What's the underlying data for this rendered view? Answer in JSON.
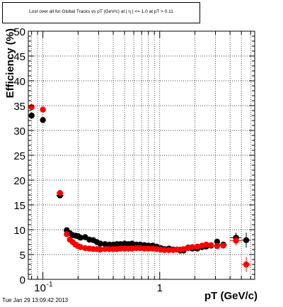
{
  "chart_data": {
    "type": "scatter",
    "title": "Lost over all for Global Tracks vs pT (GeV/c) at |  η  | <= 1.0 at pT > 0.11",
    "xlabel": "pT (GeV/c)",
    "ylabel": "Efficiency (%)",
    "xscale": "log",
    "xlim": [
      0.075,
      6.5
    ],
    "ylim": [
      0,
      50
    ],
    "grid": true,
    "y_ticks": [
      "0",
      "5",
      "10",
      "15",
      "20",
      "25",
      "30",
      "35",
      "40",
      "45",
      "50"
    ],
    "x_major_ticks": [
      {
        "x": 0.1,
        "label": "10",
        "exp": "-1"
      },
      {
        "x": 1,
        "label": "1",
        "exp": ""
      }
    ],
    "series": [
      {
        "color": "#000000",
        "x": [
          0.08,
          0.1,
          0.14,
          0.16,
          0.17,
          0.18,
          0.19,
          0.2,
          0.21,
          0.23,
          0.25,
          0.27,
          0.29,
          0.31,
          0.34,
          0.37,
          0.4,
          0.43,
          0.46,
          0.5,
          0.54,
          0.58,
          0.63,
          0.68,
          0.74,
          0.8,
          0.87,
          0.94,
          1.02,
          1.1,
          1.2,
          1.3,
          1.4,
          1.5,
          1.6,
          1.75,
          1.9,
          2.1,
          2.3,
          2.5,
          2.75,
          3.1,
          3.5,
          4.5,
          5.5
        ],
        "y": [
          33.0,
          32.1,
          16.9,
          9.9,
          9.3,
          8.9,
          8.8,
          8.7,
          8.4,
          8.5,
          8.0,
          7.9,
          7.5,
          7.2,
          7.1,
          7.0,
          7.0,
          7.1,
          7.1,
          7.2,
          7.1,
          7.2,
          7.0,
          7.0,
          6.9,
          6.8,
          6.8,
          6.6,
          6.3,
          6.1,
          6.2,
          6.0,
          6.0,
          5.8,
          5.8,
          6.4,
          6.2,
          6.2,
          6.5,
          6.6,
          6.8,
          7.6,
          7.0,
          8.4,
          7.9
        ],
        "x_err": [
          0.005,
          0.005,
          0.01,
          0.005,
          0.005,
          0.005,
          0.005,
          0.005,
          0.005,
          0.01,
          0.01,
          0.01,
          0.01,
          0.01,
          0.015,
          0.015,
          0.015,
          0.015,
          0.02,
          0.02,
          0.02,
          0.02,
          0.025,
          0.025,
          0.03,
          0.03,
          0.035,
          0.035,
          0.04,
          0.04,
          0.05,
          0.05,
          0.05,
          0.05,
          0.05,
          0.075,
          0.075,
          0.1,
          0.1,
          0.1,
          0.125,
          0.15,
          0.25,
          0.5,
          0.5
        ],
        "y_err": [
          0.2,
          0.2,
          0.2,
          0.2,
          0.2,
          0.2,
          0.2,
          0.2,
          0.2,
          0.2,
          0.2,
          0.2,
          0.2,
          0.2,
          0.2,
          0.2,
          0.2,
          0.2,
          0.2,
          0.2,
          0.2,
          0.2,
          0.2,
          0.2,
          0.2,
          0.2,
          0.2,
          0.2,
          0.2,
          0.2,
          0.2,
          0.2,
          0.3,
          0.3,
          0.3,
          0.3,
          0.3,
          0.3,
          0.4,
          0.4,
          0.4,
          0.5,
          0.6,
          1.0,
          1.5
        ]
      },
      {
        "color": "#ff0000",
        "x": [
          0.08,
          0.1,
          0.14,
          0.16,
          0.17,
          0.18,
          0.19,
          0.2,
          0.21,
          0.23,
          0.25,
          0.27,
          0.29,
          0.31,
          0.34,
          0.37,
          0.4,
          0.43,
          0.46,
          0.5,
          0.54,
          0.58,
          0.63,
          0.68,
          0.74,
          0.8,
          0.87,
          0.94,
          1.02,
          1.1,
          1.2,
          1.3,
          1.4,
          1.5,
          1.6,
          1.75,
          1.9,
          2.1,
          2.3,
          2.5,
          2.75,
          3.1,
          3.5,
          4.5,
          5.5
        ],
        "y": [
          34.7,
          34.2,
          17.4,
          9.1,
          8.0,
          7.5,
          7.0,
          6.7,
          6.5,
          6.3,
          6.2,
          6.1,
          6.1,
          6.0,
          6.1,
          6.1,
          6.1,
          6.1,
          6.2,
          6.2,
          6.2,
          6.2,
          6.3,
          6.3,
          6.2,
          6.2,
          6.2,
          6.1,
          6.0,
          5.9,
          5.9,
          5.9,
          6.0,
          6.0,
          6.1,
          6.3,
          6.5,
          6.6,
          6.8,
          7.0,
          6.9,
          6.7,
          6.8,
          7.8,
          3.0
        ],
        "x_err": [
          0.005,
          0.005,
          0.01,
          0.005,
          0.005,
          0.005,
          0.005,
          0.005,
          0.005,
          0.01,
          0.01,
          0.01,
          0.01,
          0.01,
          0.015,
          0.015,
          0.015,
          0.015,
          0.02,
          0.02,
          0.02,
          0.02,
          0.025,
          0.025,
          0.03,
          0.03,
          0.035,
          0.035,
          0.04,
          0.04,
          0.05,
          0.05,
          0.05,
          0.05,
          0.05,
          0.075,
          0.075,
          0.1,
          0.1,
          0.1,
          0.125,
          0.15,
          0.25,
          0.5,
          0.5
        ],
        "y_err": [
          0.2,
          0.2,
          0.2,
          0.2,
          0.2,
          0.2,
          0.2,
          0.2,
          0.2,
          0.2,
          0.2,
          0.2,
          0.2,
          0.2,
          0.2,
          0.2,
          0.2,
          0.2,
          0.2,
          0.2,
          0.2,
          0.2,
          0.2,
          0.2,
          0.2,
          0.2,
          0.2,
          0.2,
          0.2,
          0.2,
          0.2,
          0.2,
          0.3,
          0.3,
          0.3,
          0.3,
          0.3,
          0.3,
          0.4,
          0.4,
          0.4,
          0.5,
          0.6,
          1.0,
          1.5
        ]
      }
    ]
  },
  "footer": {
    "timestamp": "Tue Jan 29 13:09:42 2013"
  }
}
